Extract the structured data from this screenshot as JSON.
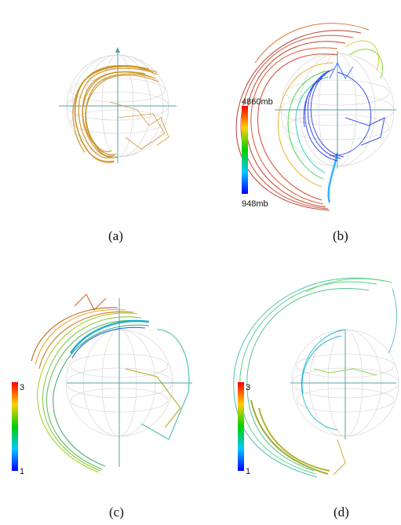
{
  "figure": {
    "panels": [
      {
        "caption": "(a)",
        "colorbar": null
      },
      {
        "caption": "(b)",
        "colorbar": {
          "max_label": "4860mb",
          "min_label": "948mb"
        }
      },
      {
        "caption": "(c)",
        "colorbar": {
          "max_label": "3",
          "min_label": "1"
        }
      },
      {
        "caption": "(d)",
        "colorbar": {
          "max_label": "3",
          "min_label": "1"
        }
      }
    ]
  },
  "colors": {
    "sphere_grid": "#c8c8c8",
    "axis": "#5aa0a0",
    "panel_a_trajectories": "#c98a12",
    "colormap": [
      "#0000ff",
      "#00c8ff",
      "#00d000",
      "#ffd000",
      "#ff0000"
    ]
  }
}
